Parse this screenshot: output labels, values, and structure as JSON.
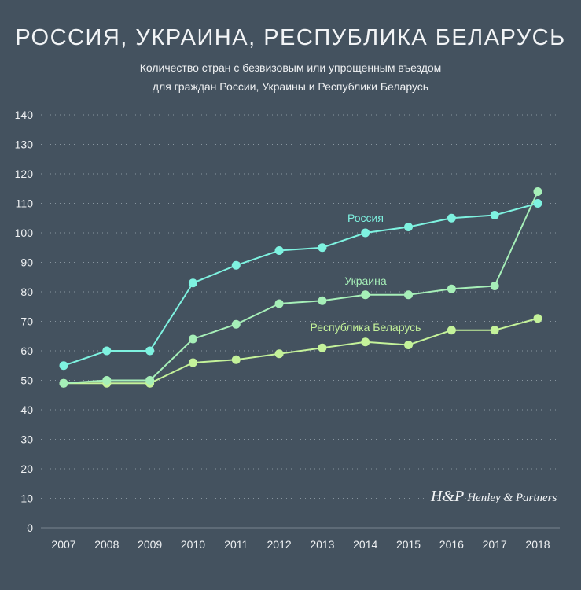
{
  "title": "РОССИЯ, УКРАИНА, РЕСПУБЛИКА БЕЛАРУСЬ",
  "subtitle_line1": "Количество стран с безвизовым или упрощенным въездом",
  "subtitle_line2": "для граждан России, Украины и Республики Беларусь",
  "logo": {
    "mark": "H&P",
    "text": "Henley & Partners"
  },
  "colors": {
    "background": "#44525f",
    "russia": "#7ef2e0",
    "ukraine": "#a6efb8",
    "belarus": "#c4f29a"
  },
  "chart_data": {
    "type": "line",
    "title": "РОССИЯ, УКРАИНА, РЕСПУБЛИКА БЕЛАРУСЬ",
    "x": [
      "2007",
      "2008",
      "2009",
      "2010",
      "2011",
      "2012",
      "2013",
      "2014",
      "2015",
      "2016",
      "2017",
      "2018"
    ],
    "ylim": [
      0,
      140
    ],
    "yticks": [
      0,
      10,
      20,
      30,
      40,
      50,
      60,
      70,
      80,
      90,
      100,
      110,
      120,
      130,
      140
    ],
    "grid": true,
    "series": [
      {
        "name": "Россия",
        "color": "#7ef2e0",
        "values": [
          55,
          60,
          60,
          83,
          89,
          94,
          95,
          100,
          102,
          105,
          106,
          110
        ]
      },
      {
        "name": "Украина",
        "color": "#a6efb8",
        "values": [
          49,
          50,
          50,
          64,
          69,
          76,
          77,
          79,
          79,
          81,
          82,
          114
        ]
      },
      {
        "name": "Республика Беларусь",
        "color": "#c4f29a",
        "values": [
          49,
          49,
          49,
          56,
          57,
          59,
          61,
          63,
          62,
          67,
          67,
          71
        ]
      }
    ]
  }
}
